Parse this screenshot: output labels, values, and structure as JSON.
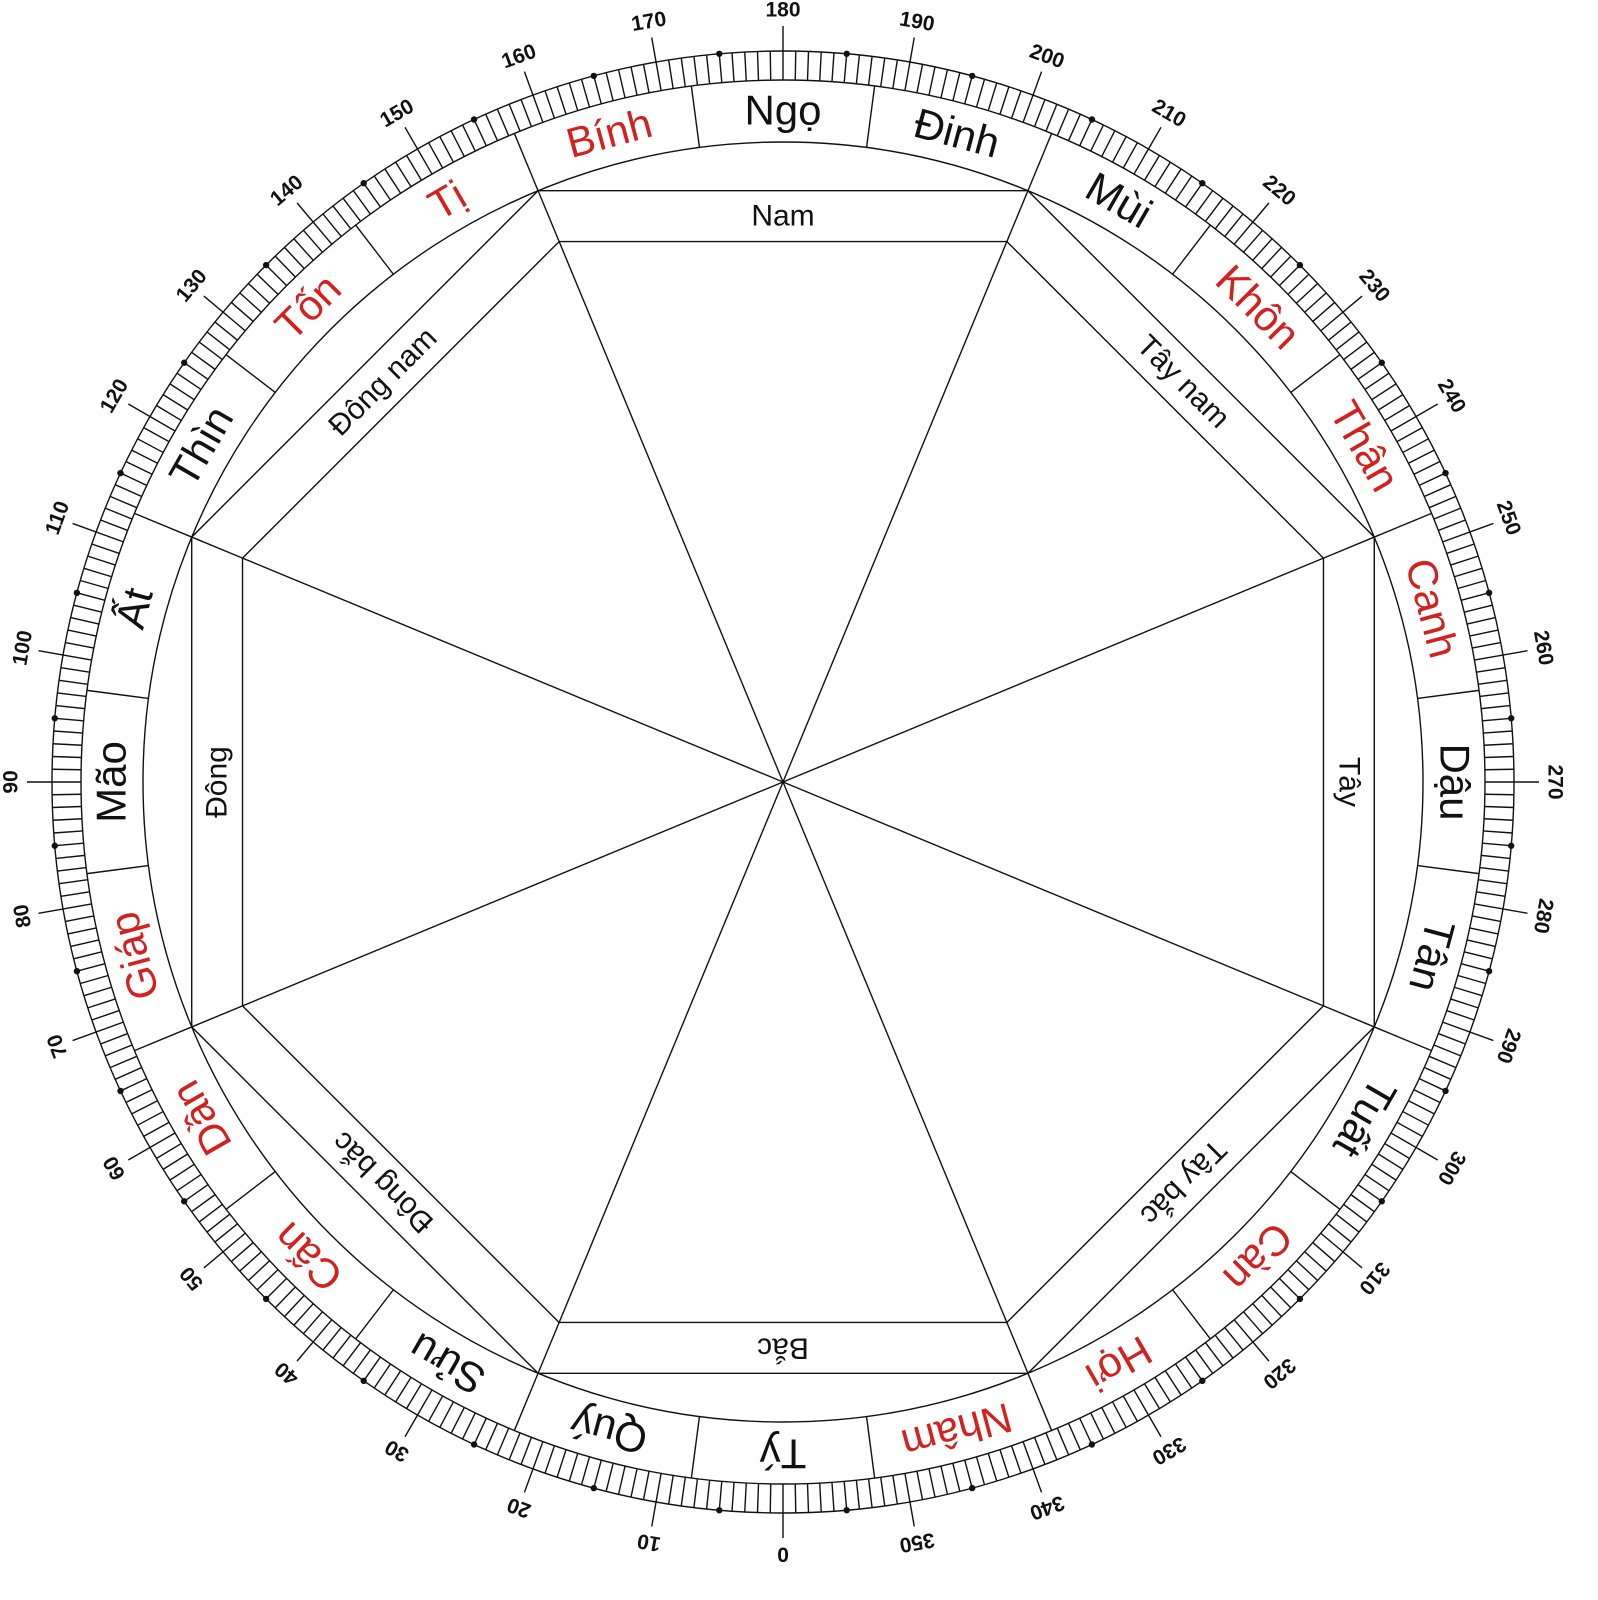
{
  "colors": {
    "line": "#111111",
    "red": "#d4201f",
    "black": "#111111"
  },
  "mountains": [
    {
      "name": "Tý",
      "deg": 0,
      "color": "black"
    },
    {
      "name": "Quý",
      "deg": 15,
      "color": "black"
    },
    {
      "name": "Sửu",
      "deg": 30,
      "color": "black"
    },
    {
      "name": "Cấn",
      "deg": 45,
      "color": "red"
    },
    {
      "name": "Dần",
      "deg": 60,
      "color": "red"
    },
    {
      "name": "Giáp",
      "deg": 75,
      "color": "red"
    },
    {
      "name": "Mão",
      "deg": 90,
      "color": "black"
    },
    {
      "name": "Ất",
      "deg": 105,
      "color": "black"
    },
    {
      "name": "Thìn",
      "deg": 120,
      "color": "black"
    },
    {
      "name": "Tốn",
      "deg": 135,
      "color": "red"
    },
    {
      "name": "Tị",
      "deg": 150,
      "color": "red"
    },
    {
      "name": "Bính",
      "deg": 165,
      "color": "red"
    },
    {
      "name": "Ngọ",
      "deg": 180,
      "color": "black"
    },
    {
      "name": "Đinh",
      "deg": 195,
      "color": "black"
    },
    {
      "name": "Mùi",
      "deg": 210,
      "color": "black"
    },
    {
      "name": "Khôn",
      "deg": 225,
      "color": "red"
    },
    {
      "name": "Thân",
      "deg": 240,
      "color": "red"
    },
    {
      "name": "Canh",
      "deg": 255,
      "color": "red"
    },
    {
      "name": "Dậu",
      "deg": 270,
      "color": "black"
    },
    {
      "name": "Tân",
      "deg": 285,
      "color": "black"
    },
    {
      "name": "Tuất",
      "deg": 300,
      "color": "black"
    },
    {
      "name": "Càn",
      "deg": 315,
      "color": "red"
    },
    {
      "name": "Hợi",
      "deg": 330,
      "color": "red"
    },
    {
      "name": "Nhâm",
      "deg": 345,
      "color": "red"
    }
  ],
  "directions": [
    {
      "name": "Bắc",
      "deg": 0
    },
    {
      "name": "Đông bắc",
      "deg": 45
    },
    {
      "name": "Đông",
      "deg": 90
    },
    {
      "name": "Đông nam",
      "deg": 135
    },
    {
      "name": "Nam",
      "deg": 180
    },
    {
      "name": "Tây nam",
      "deg": 225
    },
    {
      "name": "Tây",
      "deg": 270
    },
    {
      "name": "Tây bắc",
      "deg": 315
    }
  ],
  "degree_labels": [
    "0",
    "10",
    "20",
    "30",
    "40",
    "50",
    "60",
    "70",
    "80",
    "90",
    "100",
    "110",
    "120",
    "130",
    "140",
    "150",
    "160",
    "170",
    "180",
    "190",
    "200",
    "210",
    "220",
    "230",
    "240",
    "250",
    "260",
    "270",
    "280",
    "290",
    "300",
    "310",
    "320",
    "330",
    "340",
    "350"
  ]
}
